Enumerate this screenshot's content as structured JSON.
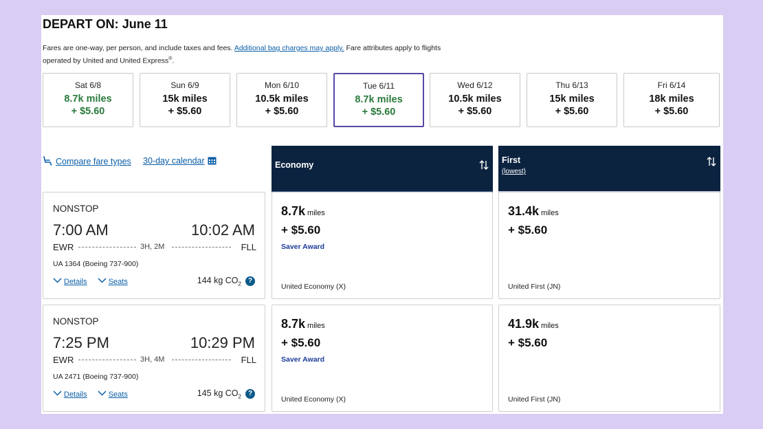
{
  "header": {
    "title_prefix": "DEPART ON:",
    "title_date": "June 11",
    "note_before": "Fares are one-way, per person, and include taxes and fees.",
    "note_link": "Additional bag charges may apply.",
    "note_after_1": "Fare attributes apply to flights",
    "note_after_2": "operated by United and United Express",
    "note_reg": "®",
    "note_end": "."
  },
  "dates": [
    {
      "day": "Sat 6/8",
      "miles": "8.7k miles",
      "fee": "+ $5.60",
      "green": true,
      "selected": false
    },
    {
      "day": "Sun 6/9",
      "miles": "15k miles",
      "fee": "+ $5.60",
      "green": false,
      "selected": false
    },
    {
      "day": "Mon 6/10",
      "miles": "10.5k miles",
      "fee": "+ $5.60",
      "green": false,
      "selected": false
    },
    {
      "day": "Tue 6/11",
      "miles": "8.7k miles",
      "fee": "+ $5.60",
      "green": true,
      "selected": true
    },
    {
      "day": "Wed 6/12",
      "miles": "10.5k miles",
      "fee": "+ $5.60",
      "green": false,
      "selected": false
    },
    {
      "day": "Thu 6/13",
      "miles": "15k miles",
      "fee": "+ $5.60",
      "green": false,
      "selected": false
    },
    {
      "day": "Fri 6/14",
      "miles": "18k miles",
      "fee": "+ $5.60",
      "green": false,
      "selected": false
    }
  ],
  "tools": {
    "compare_label": "Compare fare types",
    "calendar_label": "30-day calendar"
  },
  "cabins": {
    "economy": {
      "name": "Economy"
    },
    "first": {
      "name": "First",
      "sub": "(lowest)"
    }
  },
  "flights": [
    {
      "stops": "NONSTOP",
      "depart_time": "7:00 AM",
      "arrive_time": "10:02 AM",
      "origin": "EWR",
      "destination": "FLL",
      "duration": "3H, 2M",
      "aircraft": "UA 1364 (Boeing 737-900)",
      "details_label": "Details",
      "seats_label": "Seats",
      "co2": "144 kg CO",
      "co2_sub": "2",
      "economy": {
        "miles": "8.7k",
        "unit": "miles",
        "fee": "+ $5.60",
        "award": "Saver Award",
        "fare_class": "United Economy (X)"
      },
      "first": {
        "miles": "31.4k",
        "unit": "miles",
        "fee": "+ $5.60",
        "fare_class": "United First (JN)"
      }
    },
    {
      "stops": "NONSTOP",
      "depart_time": "7:25 PM",
      "arrive_time": "10:29 PM",
      "origin": "EWR",
      "destination": "FLL",
      "duration": "3H, 4M",
      "aircraft": "UA 2471 (Boeing 737-900)",
      "details_label": "Details",
      "seats_label": "Seats",
      "co2": "145 kg CO",
      "co2_sub": "2",
      "economy": {
        "miles": "8.7k",
        "unit": "miles",
        "fee": "+ $5.60",
        "award": "Saver Award",
        "fare_class": "United Economy (X)"
      },
      "first": {
        "miles": "41.9k",
        "unit": "miles",
        "fee": "+ $5.60",
        "fare_class": "United First (JN)"
      }
    }
  ],
  "colors": {
    "background": "#d9cdf3",
    "header_navy": "#0c2340",
    "green": "#2a7a3b",
    "link_blue": "#0a5ea8",
    "selected_border": "#5a46a6",
    "award_blue": "#1a3a9a"
  },
  "icons": {
    "compare": "seat-icon",
    "calendar": "calendar-icon",
    "sort": "sort-arrows-icon",
    "expand": "chevron-down-icon",
    "help": "question-icon"
  }
}
